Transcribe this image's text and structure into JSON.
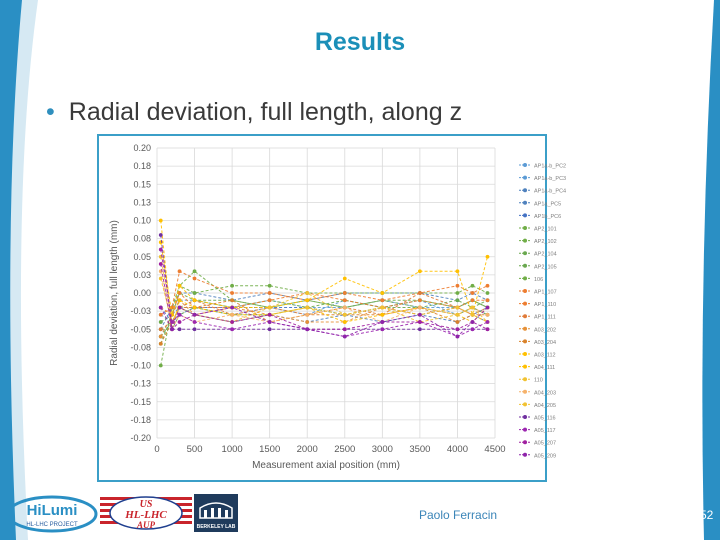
{
  "slide": {
    "title": "Results",
    "bullet": "Radial deviation, full length, along z",
    "footer_author": "Paolo Ferracin",
    "page_number": "52"
  },
  "logos": {
    "hilumi_main": "HiLumi",
    "hilumi_sub": "HL-LHC PROJECT",
    "us_hllhc_line1": "US",
    "us_hllhc_line2": "HL-LHC",
    "us_hllhc_line3": "AUP",
    "berkeley": "BERKELEY LAB"
  },
  "colors": {
    "accent": "#1b8fb8",
    "chart_border": "#3b9fc8",
    "swoosh": "#2a8fc4"
  },
  "chart_data": {
    "type": "line",
    "xlabel": "Measurement axial position (mm)",
    "ylabel": "Radial deviation, full length (mm)",
    "xlim": [
      0,
      4500
    ],
    "ylim": [
      -0.2,
      0.2
    ],
    "xticks": [
      "0",
      "500",
      "1000",
      "1500",
      "2000",
      "2500",
      "3000",
      "3500",
      "4000",
      "4500"
    ],
    "yticks": [
      "0.20",
      "0.18",
      "0.15",
      "0.13",
      "0.10",
      "0.08",
      "0.05",
      "0.03",
      "0.00",
      "-0.03",
      "-0.05",
      "-0.08",
      "-0.10",
      "-0.13",
      "-0.15",
      "-0.18",
      "-0.20"
    ],
    "grid": true,
    "legend_position": "right",
    "x": [
      50,
      200,
      300,
      500,
      1000,
      1500,
      2000,
      2500,
      3000,
      3500,
      4000,
      4200,
      4400
    ],
    "series": [
      {
        "name": "AP1a-b_PC2",
        "color": "#5b9bd5",
        "values": [
          -0.03,
          -0.04,
          -0.02,
          -0.02,
          -0.03,
          -0.02,
          -0.03,
          -0.01,
          -0.02,
          -0.01,
          -0.03,
          -0.02,
          -0.03
        ]
      },
      {
        "name": "AP1a-b_PC3",
        "color": "#5b9bd5",
        "values": [
          -0.04,
          -0.03,
          -0.01,
          -0.01,
          -0.02,
          -0.01,
          -0.02,
          -0.02,
          -0.01,
          -0.02,
          -0.02,
          -0.01,
          -0.02
        ]
      },
      {
        "name": "AP1a-b_PC4",
        "color": "#4f81bd",
        "values": [
          -0.05,
          -0.02,
          0.0,
          0.0,
          -0.01,
          0.0,
          -0.01,
          0.0,
          0.0,
          0.0,
          -0.01,
          0.0,
          -0.01
        ]
      },
      {
        "name": "AP1a_PC5",
        "color": "#4f81bd",
        "values": [
          -0.06,
          -0.03,
          -0.02,
          -0.03,
          -0.04,
          -0.03,
          -0.04,
          -0.03,
          -0.04,
          -0.03,
          -0.04,
          -0.03,
          -0.04
        ]
      },
      {
        "name": "AP1b_PC6",
        "color": "#4472c4",
        "values": [
          -0.02,
          -0.04,
          -0.03,
          -0.02,
          -0.02,
          -0.02,
          -0.02,
          -0.03,
          -0.02,
          -0.03,
          -0.02,
          -0.03,
          -0.02
        ]
      },
      {
        "name": "AP2_101",
        "color": "#70ad47",
        "values": [
          -0.1,
          -0.02,
          0.01,
          0.0,
          0.01,
          0.01,
          0.0,
          0.0,
          0.0,
          0.0,
          0.0,
          0.01,
          0.0
        ]
      },
      {
        "name": "AP2_102",
        "color": "#70ad47",
        "values": [
          -0.07,
          -0.03,
          0.0,
          -0.01,
          -0.02,
          -0.01,
          -0.02,
          -0.01,
          -0.02,
          -0.01,
          -0.02,
          -0.01,
          -0.02
        ]
      },
      {
        "name": "AP2_104",
        "color": "#6aa84f",
        "values": [
          -0.06,
          -0.04,
          -0.02,
          -0.01,
          -0.01,
          -0.02,
          -0.01,
          -0.02,
          -0.01,
          -0.02,
          -0.01,
          -0.02,
          -0.01
        ]
      },
      {
        "name": "AP2_105",
        "color": "#6aa84f",
        "values": [
          -0.05,
          -0.05,
          -0.03,
          -0.02,
          -0.03,
          -0.03,
          -0.02,
          -0.03,
          -0.02,
          -0.02,
          -0.03,
          -0.02,
          -0.03
        ]
      },
      {
        "name": "106",
        "color": "#70ad47",
        "values": [
          -0.04,
          -0.03,
          0.01,
          0.03,
          -0.01,
          -0.02,
          -0.01,
          -0.02,
          -0.01,
          -0.01,
          -0.02,
          -0.01,
          -0.02
        ]
      },
      {
        "name": "AP1_107",
        "color": "#ed7d31",
        "values": [
          -0.03,
          -0.02,
          0.03,
          0.02,
          0.0,
          0.0,
          -0.01,
          0.0,
          -0.01,
          0.0,
          0.01,
          0.0,
          0.01
        ]
      },
      {
        "name": "AP1_110",
        "color": "#ed7d31",
        "values": [
          -0.02,
          -0.03,
          0.0,
          -0.02,
          -0.02,
          -0.01,
          0.0,
          -0.01,
          -0.02,
          -0.01,
          -0.02,
          -0.01,
          -0.01
        ]
      },
      {
        "name": "AP1_111",
        "color": "#e07b39",
        "values": [
          -0.05,
          -0.04,
          -0.02,
          -0.01,
          -0.03,
          -0.02,
          -0.03,
          -0.02,
          -0.03,
          0.0,
          -0.02,
          -0.03,
          -0.02
        ]
      },
      {
        "name": "A03_202",
        "color": "#e69138",
        "values": [
          -0.06,
          -0.03,
          -0.01,
          -0.03,
          -0.02,
          -0.03,
          -0.04,
          -0.04,
          -0.02,
          -0.03,
          -0.02,
          -0.03,
          -0.04
        ]
      },
      {
        "name": "A03_204",
        "color": "#d9822b",
        "values": [
          -0.07,
          -0.04,
          -0.02,
          -0.02,
          -0.01,
          -0.04,
          -0.03,
          -0.03,
          -0.03,
          -0.02,
          -0.04,
          -0.03,
          -0.03
        ]
      },
      {
        "name": "A03_112",
        "color": "#ffc000",
        "values": [
          0.1,
          -0.05,
          -0.01,
          -0.02,
          -0.03,
          -0.03,
          -0.02,
          -0.04,
          -0.03,
          -0.02,
          -0.03,
          -0.04,
          -0.02
        ]
      },
      {
        "name": "A04_111",
        "color": "#ffc000",
        "values": [
          0.07,
          -0.03,
          0.01,
          -0.01,
          -0.02,
          -0.02,
          -0.01,
          0.02,
          0.0,
          0.03,
          0.03,
          -0.03,
          0.05
        ]
      },
      {
        "name": "110",
        "color": "#f1c232",
        "values": [
          0.05,
          -0.04,
          -0.02,
          -0.03,
          -0.04,
          -0.02,
          0.0,
          -0.03,
          -0.02,
          -0.03,
          -0.02,
          -0.03,
          -0.04
        ]
      },
      {
        "name": "A04_203",
        "color": "#f6b26b",
        "values": [
          0.03,
          -0.05,
          -0.03,
          -0.04,
          -0.03,
          -0.04,
          -0.03,
          -0.02,
          -0.04,
          -0.02,
          -0.03,
          -0.02,
          -0.03
        ]
      },
      {
        "name": "A04_205",
        "color": "#f1c232",
        "values": [
          0.02,
          -0.04,
          -0.02,
          -0.03,
          -0.04,
          -0.03,
          -0.02,
          -0.03,
          -0.02,
          -0.04,
          -0.03,
          -0.02,
          -0.04
        ]
      },
      {
        "name": "A05_116",
        "color": "#7030a0",
        "values": [
          0.08,
          -0.05,
          -0.05,
          -0.05,
          -0.05,
          -0.05,
          -0.05,
          -0.05,
          -0.05,
          -0.05,
          -0.05,
          -0.05,
          -0.05
        ]
      },
      {
        "name": "A05_117",
        "color": "#9c27b0",
        "values": [
          0.06,
          -0.04,
          -0.03,
          -0.04,
          -0.05,
          -0.04,
          -0.05,
          -0.06,
          -0.05,
          -0.04,
          -0.06,
          -0.05,
          -0.04
        ]
      },
      {
        "name": "A05_207",
        "color": "#a020a0",
        "values": [
          0.04,
          -0.05,
          -0.04,
          -0.03,
          -0.04,
          -0.03,
          -0.05,
          -0.05,
          -0.04,
          -0.04,
          -0.05,
          -0.04,
          -0.05
        ]
      },
      {
        "name": "A05_209",
        "color": "#8e24aa",
        "values": [
          -0.02,
          -0.05,
          -0.02,
          -0.03,
          -0.02,
          -0.04,
          -0.05,
          -0.06,
          -0.04,
          -0.03,
          -0.06,
          -0.04,
          -0.02
        ]
      }
    ]
  }
}
